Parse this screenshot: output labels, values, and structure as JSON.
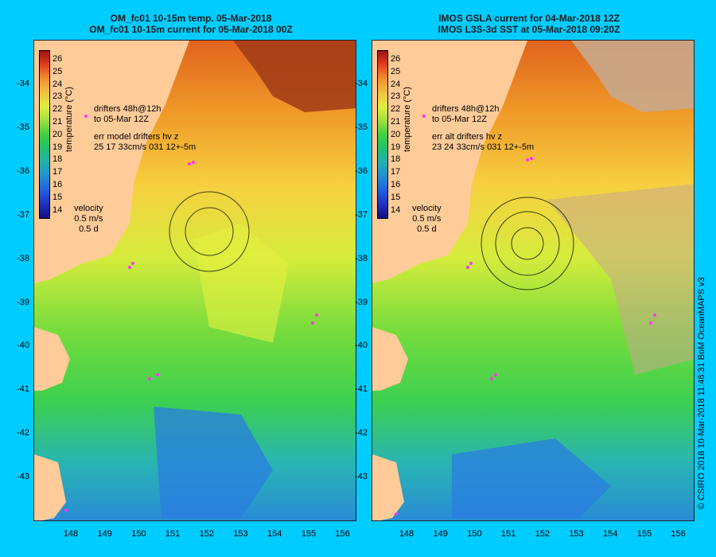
{
  "panels": [
    {
      "title_line1": "OM_fc01 10-15m temp. 05-Mar-2018",
      "title_line2": "OM_fc01 10-15m current for 05-Mar-2018 00Z",
      "drifters_line1": "drifters 48h@12h",
      "drifters_line2": "to 05-Mar 12Z",
      "err_line1": "err model drifters hv z",
      "err_line2": "25 17 33cm/s 031 12+-5m",
      "velocity_label": "velocity",
      "velocity_scale": "0.5 m/s",
      "velocity_time": "0.5 d",
      "colorbar_label": "temperature (°C)"
    },
    {
      "title_line1": "IMOS GSLA current for 04-Mar-2018 12Z",
      "title_line2": "IMOS L3S-3d SST at 05-Mar-2018 09:20Z",
      "drifters_line1": "drifters 48h@12h",
      "drifters_line2": "to 05-Mar 12Z",
      "err_line1": "err alt drifters hv z",
      "err_line2": "23 24 33cm/s 031 12+-5m",
      "velocity_label": "velocity",
      "velocity_scale": "0.5 m/s",
      "velocity_time": "0.5 d",
      "colorbar_label": "temperature (°C)"
    }
  ],
  "colorbar_ticks": [
    "26",
    "25",
    "24",
    "23",
    "22",
    "21",
    "20",
    "19",
    "18",
    "17",
    "16",
    "15",
    "14"
  ],
  "lat_ticks": [
    "-34",
    "-35",
    "-36",
    "-37",
    "-38",
    "-39",
    "-40",
    "-41",
    "-42",
    "-43"
  ],
  "lon_ticks": [
    "148",
    "149",
    "150",
    "151",
    "152",
    "153",
    "154",
    "155",
    "156"
  ],
  "credit": "© CSIRO 2018   10-Mar-2018 11:46:31 BoM OceanMAPS v3",
  "colors": {
    "background": "#00ccff",
    "land": "#ffcc99",
    "missing": "#c8a88c",
    "drifter": "#ff33ff"
  }
}
